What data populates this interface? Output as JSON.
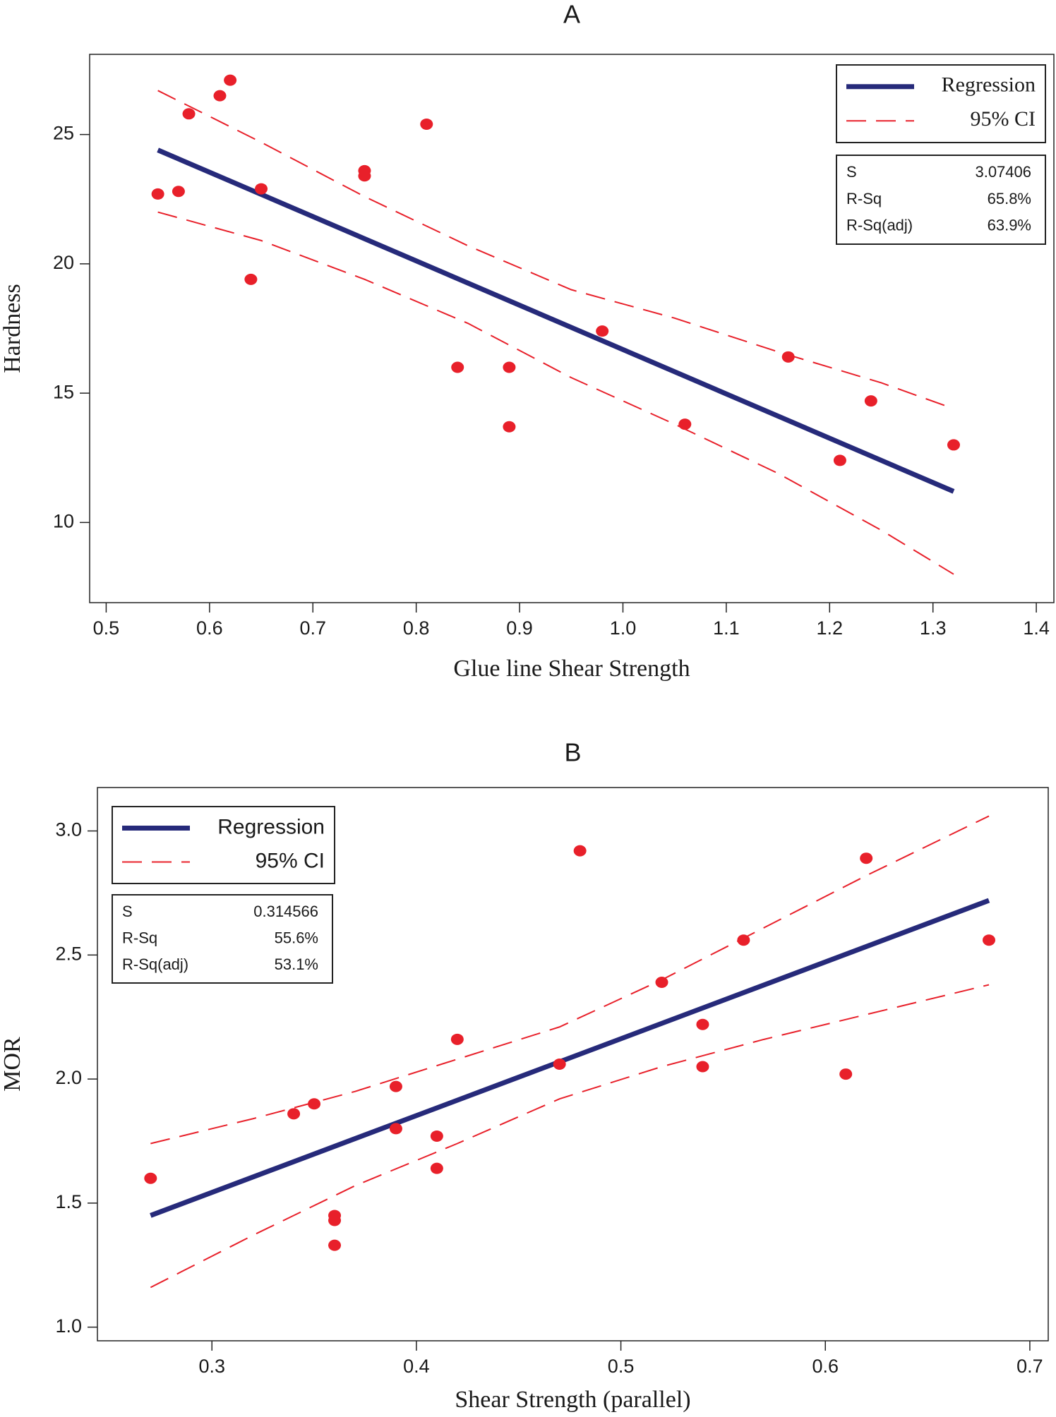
{
  "chart_data": [
    {
      "type": "scatter",
      "title": "A",
      "x_label": "Glue line Shear Strength",
      "y_label": "Hardness",
      "xlim": [
        0.484,
        1.417
      ],
      "ylim": [
        6.9,
        28.1
      ],
      "xticks": [
        {
          "value": 0.5,
          "label": "0.5"
        },
        {
          "value": 0.6,
          "label": "0.6"
        },
        {
          "value": 0.7,
          "label": "0.7"
        },
        {
          "value": 0.8,
          "label": "0.8"
        },
        {
          "value": 0.9,
          "label": "0.9"
        },
        {
          "value": 1.0,
          "label": "1.0"
        },
        {
          "value": 1.1,
          "label": "1.1"
        },
        {
          "value": 1.2,
          "label": "1.2"
        },
        {
          "value": 1.3,
          "label": "1.3"
        },
        {
          "value": 1.4,
          "label": "1.4"
        }
      ],
      "yticks": [
        10,
        15,
        20,
        25
      ],
      "legend": "top-right",
      "points": {
        "color": "#e8202a",
        "x": [
          0.55,
          0.57,
          0.58,
          0.61,
          0.62,
          0.64,
          0.65,
          0.75,
          0.75,
          0.81,
          0.84,
          0.89,
          0.89,
          0.98,
          1.06,
          1.16,
          1.21,
          1.24,
          1.32
        ],
        "values": [
          22.7,
          22.8,
          25.8,
          26.5,
          27.1,
          19.4,
          22.9,
          23.6,
          23.4,
          25.4,
          16.0,
          16.0,
          13.7,
          17.4,
          13.8,
          16.4,
          12.4,
          14.7,
          13.0
        ]
      },
      "series": [
        {
          "name": "Regression",
          "color": "#262a7a",
          "dash": "solid",
          "x": [
            0.55,
            1.32
          ],
          "values": [
            24.4,
            11.2
          ]
        },
        {
          "name": "95% CI",
          "color": "#e8202a",
          "dash": "dashed",
          "x": [
            0.55,
            0.65,
            0.75,
            0.85,
            0.95,
            1.05,
            1.15,
            1.25,
            1.32
          ],
          "values": [
            26.7,
            24.7,
            22.6,
            20.7,
            19.0,
            17.9,
            16.6,
            15.4,
            14.4
          ],
          "lower": [
            22.0,
            20.9,
            19.4,
            17.7,
            15.6,
            13.8,
            11.9,
            9.7,
            8.0
          ]
        }
      ],
      "stats": [
        [
          "S",
          "3.07406"
        ],
        [
          "R-Sq",
          "65.8%"
        ],
        [
          "R-Sq(adj)",
          "63.9%"
        ]
      ]
    },
    {
      "type": "scatter",
      "title": "B",
      "x_label": "Shear Strength (parallel)",
      "y_label": "MOR",
      "xlim": [
        0.244,
        0.709
      ],
      "ylim": [
        0.945,
        3.175
      ],
      "xticks": [
        0.3,
        0.4,
        0.5,
        0.6,
        0.7
      ],
      "yticks": [
        {
          "value": 1.0,
          "label": "1.0"
        },
        {
          "value": 1.5,
          "label": "1.5"
        },
        {
          "value": 2.0,
          "label": "2.0"
        },
        {
          "value": 2.5,
          "label": "2.5"
        },
        {
          "value": 3.0,
          "label": "3.0"
        }
      ],
      "legend": "top-left",
      "points": {
        "color": "#e8202a",
        "x": [
          0.27,
          0.34,
          0.35,
          0.36,
          0.36,
          0.36,
          0.39,
          0.39,
          0.41,
          0.41,
          0.42,
          0.47,
          0.48,
          0.52,
          0.54,
          0.54,
          0.56,
          0.61,
          0.62,
          0.68
        ],
        "values": [
          1.6,
          1.86,
          1.9,
          1.45,
          1.43,
          1.33,
          1.97,
          1.8,
          1.77,
          1.64,
          2.16,
          2.06,
          2.92,
          2.39,
          2.22,
          2.05,
          2.56,
          2.02,
          2.89,
          2.56
        ]
      },
      "series": [
        {
          "name": "Regression",
          "color": "#262a7a",
          "dash": "solid",
          "x": [
            0.27,
            0.68
          ],
          "values": [
            1.45,
            2.72
          ]
        },
        {
          "name": "95% CI",
          "color": "#e8202a",
          "dash": "dashed",
          "x": [
            0.27,
            0.32,
            0.37,
            0.42,
            0.47,
            0.52,
            0.57,
            0.62,
            0.68
          ],
          "values": [
            1.74,
            1.84,
            1.95,
            2.08,
            2.21,
            2.4,
            2.61,
            2.82,
            3.06
          ],
          "lower": [
            1.16,
            1.37,
            1.57,
            1.74,
            1.92,
            2.05,
            2.16,
            2.26,
            2.38
          ]
        }
      ],
      "stats": [
        [
          "S",
          "0.314566"
        ],
        [
          "R-Sq",
          "55.6%"
        ],
        [
          "R-Sq(adj)",
          "53.1%"
        ]
      ]
    }
  ]
}
